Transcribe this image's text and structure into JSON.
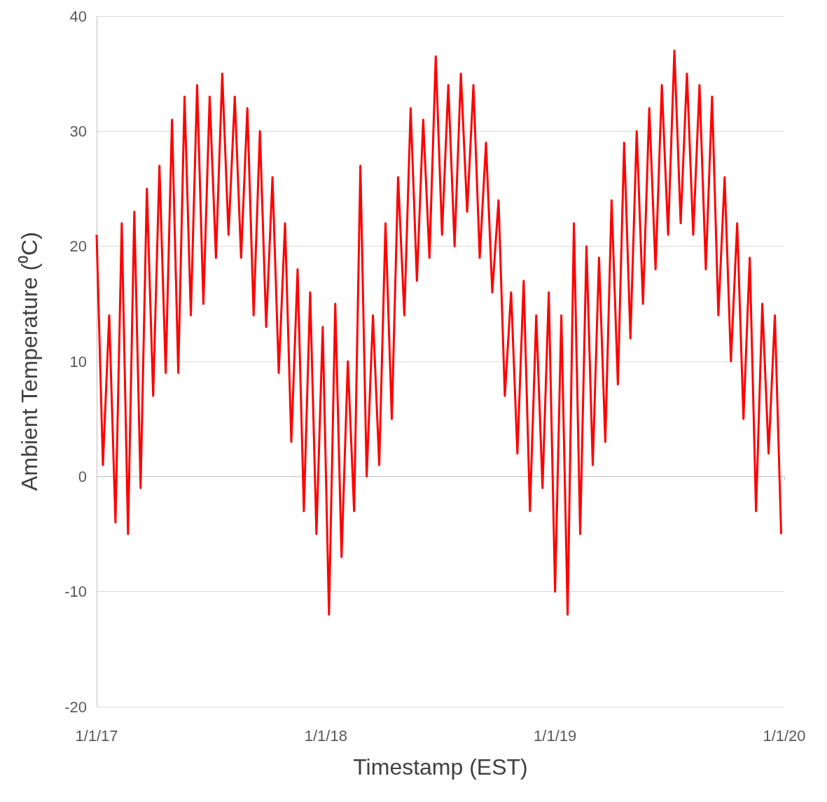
{
  "chart_data": {
    "type": "line",
    "xlabel": "Timestamp (EST)",
    "ylabel": "Ambient Temperature (⁰C)",
    "xlim": [
      "2017-01-01",
      "2020-01-01"
    ],
    "xticks": [
      {
        "value": "2017-01-01",
        "label": "1/1/17"
      },
      {
        "value": "2018-01-01",
        "label": "1/1/18"
      },
      {
        "value": "2019-01-01",
        "label": "1/1/19"
      },
      {
        "value": "2020-01-01",
        "label": "1/1/20"
      }
    ],
    "ylim": [
      -20,
      40
    ],
    "yticks": [
      -20,
      -10,
      0,
      10,
      20,
      30,
      40
    ],
    "grid": "y",
    "line_style": "solid",
    "x": [
      "2017-01-01",
      "2017-01-11",
      "2017-01-21",
      "2017-01-31",
      "2017-02-10",
      "2017-02-20",
      "2017-03-02",
      "2017-03-12",
      "2017-03-22",
      "2017-04-01",
      "2017-04-11",
      "2017-04-21",
      "2017-05-01",
      "2017-05-11",
      "2017-05-21",
      "2017-05-31",
      "2017-06-10",
      "2017-06-20",
      "2017-06-30",
      "2017-07-10",
      "2017-07-20",
      "2017-07-30",
      "2017-08-09",
      "2017-08-19",
      "2017-08-29",
      "2017-09-08",
      "2017-09-18",
      "2017-09-28",
      "2017-10-08",
      "2017-10-18",
      "2017-10-28",
      "2017-11-07",
      "2017-11-17",
      "2017-11-27",
      "2017-12-07",
      "2017-12-17",
      "2017-12-27",
      "2018-01-06",
      "2018-01-16",
      "2018-01-26",
      "2018-02-05",
      "2018-02-15",
      "2018-02-25",
      "2018-03-07",
      "2018-03-17",
      "2018-03-27",
      "2018-04-06",
      "2018-04-16",
      "2018-04-26",
      "2018-05-06",
      "2018-05-16",
      "2018-05-26",
      "2018-06-05",
      "2018-06-15",
      "2018-06-25",
      "2018-07-05",
      "2018-07-15",
      "2018-07-25",
      "2018-08-04",
      "2018-08-14",
      "2018-08-24",
      "2018-09-03",
      "2018-09-13",
      "2018-09-23",
      "2018-10-03",
      "2018-10-13",
      "2018-10-23",
      "2018-11-02",
      "2018-11-12",
      "2018-11-22",
      "2018-12-02",
      "2018-12-12",
      "2018-12-22",
      "2019-01-01",
      "2019-01-11",
      "2019-01-21",
      "2019-01-31",
      "2019-02-10",
      "2019-02-20",
      "2019-03-02",
      "2019-03-12",
      "2019-03-22",
      "2019-04-01",
      "2019-04-11",
      "2019-04-21",
      "2019-05-01",
      "2019-05-11",
      "2019-05-21",
      "2019-05-31",
      "2019-06-10",
      "2019-06-20",
      "2019-06-30",
      "2019-07-10",
      "2019-07-20",
      "2019-07-30",
      "2019-08-09",
      "2019-08-19",
      "2019-08-29",
      "2019-09-08",
      "2019-09-18",
      "2019-09-28",
      "2019-10-08",
      "2019-10-18",
      "2019-10-28",
      "2019-11-07",
      "2019-11-17",
      "2019-11-27",
      "2019-12-07",
      "2019-12-17",
      "2019-12-27"
    ],
    "series": [
      {
        "color": "#ff0000",
        "values": [
          21,
          1,
          14,
          -4,
          22,
          -5,
          23,
          -1,
          25,
          7,
          27,
          9,
          31,
          9,
          33,
          14,
          34,
          15,
          33,
          19,
          35,
          21,
          33,
          19,
          32,
          14,
          30,
          13,
          26,
          9,
          22,
          3,
          18,
          -3,
          16,
          -5,
          13,
          -12,
          15,
          -7,
          10,
          -3,
          27,
          0,
          14,
          1,
          22,
          5,
          26,
          14,
          32,
          17,
          31,
          19,
          36.5,
          21,
          34,
          20,
          35,
          23,
          34,
          19,
          29,
          16,
          24,
          7,
          16,
          2,
          17,
          -3,
          14,
          -1,
          16,
          -10,
          14,
          -12,
          22,
          -5,
          20,
          1,
          19,
          3,
          24,
          8,
          29,
          12,
          30,
          15,
          32,
          18,
          34,
          21,
          37,
          22,
          35,
          21,
          34,
          18,
          33,
          14,
          26,
          10,
          22,
          5,
          19,
          -3,
          15,
          2,
          14,
          -5
        ]
      }
    ]
  }
}
